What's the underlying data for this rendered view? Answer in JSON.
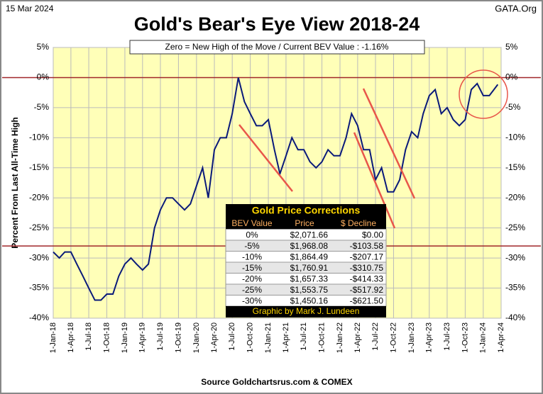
{
  "chart_data": {
    "type": "line",
    "date": "15 Mar 2024",
    "site": "GATA.Org",
    "title": "Gold's Bear's Eye View 2018-24",
    "subtitle": "Zero = New High of the Move / Current  BEV Value : -1.16%",
    "y_label": "Percent  From Last  All-Time  High",
    "source": "Source Goldchartsrus.com & COMEX",
    "ylim": [
      -40,
      5
    ],
    "yticks": [
      {
        "value": 5,
        "label": "5%"
      },
      {
        "value": 0,
        "label": "0%"
      },
      {
        "value": -5,
        "label": "-5%"
      },
      {
        "value": -10,
        "label": "-10%"
      },
      {
        "value": -15,
        "label": "-15%"
      },
      {
        "value": -20,
        "label": "-20%"
      },
      {
        "value": -25,
        "label": "-25%"
      },
      {
        "value": -30,
        "label": "-30%"
      },
      {
        "value": -35,
        "label": "-35%"
      },
      {
        "value": -40,
        "label": "-40%"
      }
    ],
    "xlim": [
      "1-Jan-18",
      "1-Apr-24"
    ],
    "xticks": [
      "1-Jan-18",
      "1-Apr-18",
      "1-Jul-18",
      "1-Oct-18",
      "1-Jan-19",
      "1-Apr-19",
      "1-Jul-19",
      "1-Oct-19",
      "1-Jan-20",
      "1-Apr-20",
      "1-Jul-20",
      "1-Oct-20",
      "1-Jan-21",
      "1-Apr-21",
      "1-Jul-21",
      "1-Oct-21",
      "1-Jan-22",
      "1-Apr-22",
      "1-Jul-22",
      "1-Oct-22",
      "1-Jan-23",
      "1-Apr-23",
      "1-Jul-23",
      "1-Oct-23",
      "1-Jan-24",
      "1-Apr-24"
    ],
    "grid": true,
    "reference_lines": [
      {
        "value": 0,
        "color": "#a0262a"
      },
      {
        "value": -28,
        "color": "#a0262a"
      }
    ],
    "x": [
      "1-Jan-18",
      "1-Feb-18",
      "1-Mar-18",
      "1-Apr-18",
      "1-May-18",
      "1-Jun-18",
      "1-Jul-18",
      "1-Aug-18",
      "1-Sep-18",
      "1-Oct-18",
      "1-Nov-18",
      "1-Dec-18",
      "1-Jan-19",
      "1-Feb-19",
      "1-Mar-19",
      "1-Apr-19",
      "1-May-19",
      "1-Jun-19",
      "1-Jul-19",
      "1-Aug-19",
      "1-Sep-19",
      "1-Oct-19",
      "1-Nov-19",
      "1-Dec-19",
      "1-Jan-20",
      "1-Feb-20",
      "1-Mar-20",
      "1-Apr-20",
      "1-May-20",
      "1-Jun-20",
      "1-Jul-20",
      "1-Aug-20",
      "1-Sep-20",
      "1-Oct-20",
      "1-Nov-20",
      "1-Dec-20",
      "1-Jan-21",
      "1-Feb-21",
      "1-Mar-21",
      "1-Apr-21",
      "1-May-21",
      "1-Jun-21",
      "1-Jul-21",
      "1-Aug-21",
      "1-Sep-21",
      "1-Oct-21",
      "1-Nov-21",
      "1-Dec-21",
      "1-Jan-22",
      "1-Feb-22",
      "1-Mar-22",
      "1-Apr-22",
      "1-May-22",
      "1-Jun-22",
      "1-Jul-22",
      "1-Aug-22",
      "1-Sep-22",
      "1-Oct-22",
      "1-Nov-22",
      "1-Dec-22",
      "1-Jan-23",
      "1-Feb-23",
      "1-Mar-23",
      "1-Apr-23",
      "1-May-23",
      "1-Jun-23",
      "1-Jul-23",
      "1-Aug-23",
      "1-Sep-23",
      "1-Oct-23",
      "1-Nov-23",
      "1-Dec-23",
      "1-Jan-24",
      "1-Feb-24",
      "15-Mar-24"
    ],
    "series": [
      {
        "name": "BEV Value",
        "color": "#0a1a7a",
        "values": [
          -29,
          -30,
          -29,
          -29,
          -31,
          -33,
          -35,
          -37,
          -37,
          -36,
          -36,
          -33,
          -31,
          -30,
          -31,
          -32,
          -31,
          -25,
          -22,
          -20,
          -20,
          -21,
          -22,
          -21,
          -18,
          -15,
          -20,
          -12,
          -10,
          -10,
          -6,
          0,
          -4,
          -6,
          -8,
          -8,
          -7,
          -12,
          -16,
          -13,
          -10,
          -12,
          -12,
          -14,
          -15,
          -14,
          -12,
          -13,
          -13,
          -10,
          -6,
          -8,
          -12,
          -12,
          -17,
          -15,
          -19,
          -19,
          -17,
          -12,
          -9,
          -10,
          -6,
          -3,
          -2,
          -6,
          -5,
          -7,
          -8,
          -7,
          -2,
          -1,
          -3,
          -3,
          -1.16
        ]
      }
    ],
    "corrections_table": {
      "title": "Gold Price Corrections",
      "columns": [
        "BEV Value",
        "Price",
        "$ Decline"
      ],
      "rows": [
        [
          "0%",
          "$2,071.66",
          "$0.00"
        ],
        [
          "-5%",
          "$1,968.08",
          "-$103.58"
        ],
        [
          "-10%",
          "$1,864.49",
          "-$207.17"
        ],
        [
          "-15%",
          "$1,760.91",
          "-$310.75"
        ],
        [
          "-20%",
          "$1,657.33",
          "-$414.33"
        ],
        [
          "-25%",
          "$1,553.75",
          "-$517.92"
        ],
        [
          "-30%",
          "$1,450.16",
          "-$621.50"
        ]
      ],
      "footer": "Graphic by Mark J. Lundeen"
    }
  }
}
